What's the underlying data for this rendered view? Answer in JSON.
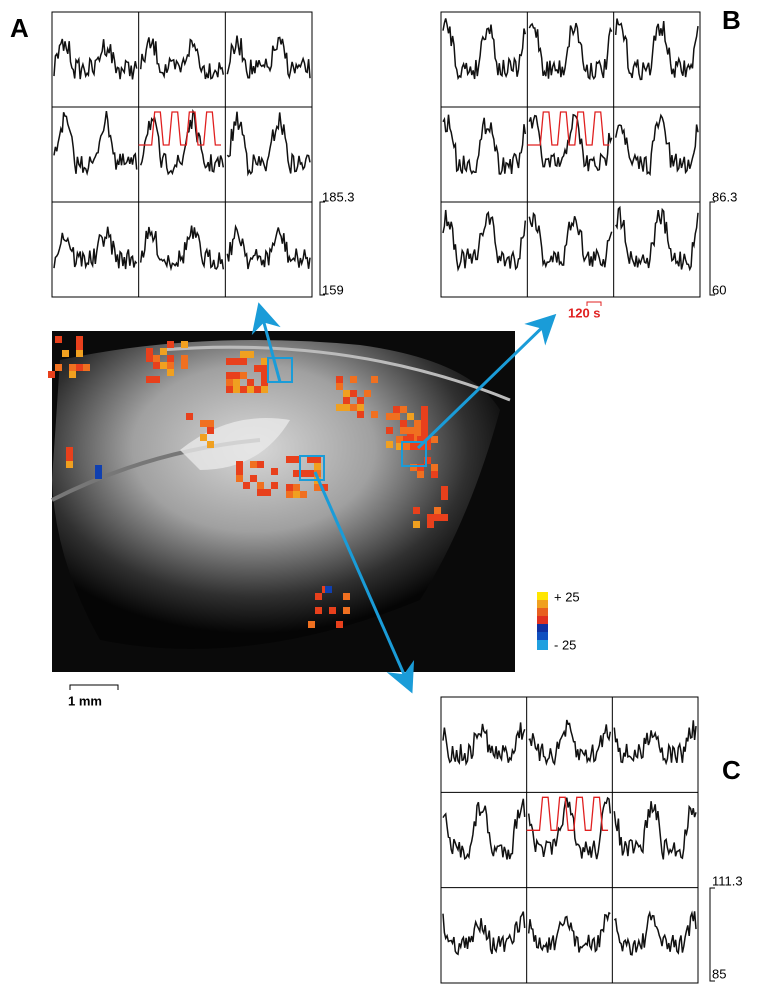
{
  "panels": [
    {
      "label": "A",
      "scale_max": 185.3,
      "scale_min": 159
    },
    {
      "label": "B",
      "scale_max": 86.3,
      "scale_min": 60,
      "time_scale": "120 s"
    },
    {
      "label": "C",
      "scale_max": 111.3,
      "scale_min": 85
    }
  ],
  "colorbar": {
    "max_label": "+ 25",
    "min_label": "- 25"
  },
  "scale_bar": "1 mm"
}
